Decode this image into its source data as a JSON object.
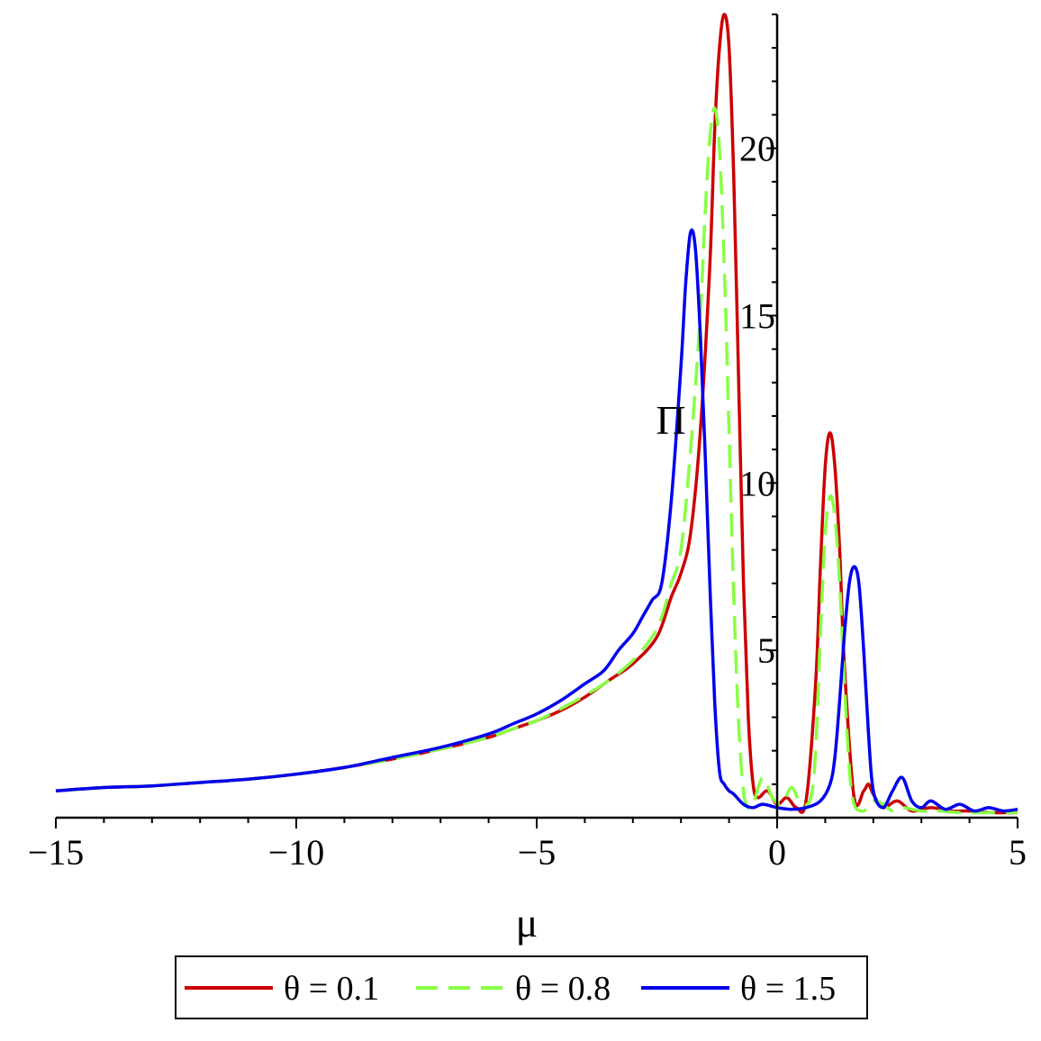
{
  "chart_data": {
    "type": "line",
    "title": "",
    "xlabel": "μ",
    "ylabel": "Π",
    "xlim": [
      -15,
      5
    ],
    "ylim": [
      0,
      24
    ],
    "x_ticks": [
      {
        "value": -15,
        "label": "−15"
      },
      {
        "value": -10,
        "label": "−10"
      },
      {
        "value": -5,
        "label": "−5"
      },
      {
        "value": 0,
        "label": "0"
      },
      {
        "value": 5,
        "label": "5"
      }
    ],
    "y_ticks": [
      {
        "value": 5,
        "label": "5"
      },
      {
        "value": 10,
        "label": "10"
      },
      {
        "value": 15,
        "label": "15"
      },
      {
        "value": 20,
        "label": "20"
      }
    ],
    "grid": false,
    "legend_position": "bottom",
    "series": [
      {
        "name": "θ = 0.1",
        "color": "#cc0000",
        "dash": "solid",
        "x": [
          -15,
          -14,
          -13,
          -12,
          -11,
          -10,
          -9,
          -8,
          -7,
          -6,
          -5.5,
          -5,
          -4.5,
          -4,
          -3.5,
          -3,
          -2.5,
          -2.2,
          -2,
          -1.8,
          -1.6,
          -1.4,
          -1.3,
          -1.2,
          -1.1,
          -1.0,
          -0.9,
          -0.8,
          -0.7,
          -0.6,
          -0.5,
          -0.4,
          -0.2,
          0,
          0.2,
          0.4,
          0.6,
          0.8,
          0.9,
          1.0,
          1.1,
          1.2,
          1.3,
          1.4,
          1.6,
          1.8,
          1.9,
          2.0,
          2.2,
          2.5,
          2.8,
          3.2,
          3.6,
          4.0,
          4.5,
          5
        ],
        "y": [
          0.8,
          0.9,
          0.95,
          1.05,
          1.15,
          1.3,
          1.5,
          1.75,
          2.05,
          2.4,
          2.65,
          2.9,
          3.2,
          3.6,
          4.1,
          4.6,
          5.4,
          6.6,
          7.3,
          8.5,
          11.5,
          16.5,
          20.5,
          23.0,
          24.0,
          23.0,
          19.0,
          13.0,
          7.0,
          3.0,
          1.0,
          0.6,
          0.8,
          0.4,
          0.6,
          0.3,
          0.5,
          4.0,
          7.5,
          10.5,
          11.5,
          10.5,
          8.0,
          4.5,
          0.6,
          0.8,
          1.0,
          0.7,
          0.3,
          0.5,
          0.2,
          0.3,
          0.2,
          0.2,
          0.15,
          0.15
        ]
      },
      {
        "name": "θ = 0.8",
        "color": "#88ff44",
        "dash": "dashed",
        "x": [
          -15,
          -14,
          -13,
          -12,
          -11,
          -10,
          -9,
          -8,
          -7,
          -6,
          -5.5,
          -5,
          -4.5,
          -4,
          -3.5,
          -3,
          -2.6,
          -2.4,
          -2.2,
          -2.0,
          -1.8,
          -1.6,
          -1.5,
          -1.4,
          -1.3,
          -1.2,
          -1.1,
          -1.0,
          -0.9,
          -0.8,
          -0.7,
          -0.6,
          -0.5,
          -0.3,
          -0.1,
          0.1,
          0.3,
          0.5,
          0.7,
          0.8,
          0.9,
          1.0,
          1.1,
          1.2,
          1.3,
          1.4,
          1.5,
          1.6,
          1.8,
          2.0,
          2.2,
          2.4,
          2.6,
          3.0,
          3.4,
          3.8,
          4.2,
          4.6,
          5
        ],
        "y": [
          0.8,
          0.9,
          0.95,
          1.05,
          1.15,
          1.3,
          1.5,
          1.75,
          2.05,
          2.4,
          2.65,
          2.9,
          3.25,
          3.65,
          4.1,
          4.7,
          5.4,
          6.0,
          7.0,
          8.0,
          11.0,
          15.0,
          18.0,
          20.3,
          21.2,
          20.0,
          16.5,
          11.5,
          6.5,
          2.8,
          0.8,
          0.3,
          0.4,
          1.2,
          0.6,
          0.4,
          0.9,
          0.4,
          0.6,
          2.0,
          5.5,
          8.5,
          9.6,
          9.0,
          7.0,
          4.0,
          1.5,
          0.4,
          0.2,
          0.5,
          0.4,
          0.2,
          0.3,
          0.2,
          0.2,
          0.15,
          0.15,
          0.15,
          0.15
        ]
      },
      {
        "name": "θ = 1.5",
        "color": "#0000ee",
        "dash": "solid",
        "x": [
          -15,
          -14,
          -13,
          -12,
          -11,
          -10,
          -9,
          -8,
          -7,
          -6,
          -5.5,
          -5,
          -4.5,
          -4,
          -3.6,
          -3.3,
          -3.0,
          -2.8,
          -2.6,
          -2.4,
          -2.2,
          -2.0,
          -1.9,
          -1.8,
          -1.7,
          -1.6,
          -1.5,
          -1.4,
          -1.3,
          -1.2,
          -1.1,
          -1.0,
          -0.9,
          -0.7,
          -0.5,
          -0.3,
          0,
          0.3,
          0.6,
          0.9,
          1.1,
          1.2,
          1.3,
          1.4,
          1.5,
          1.6,
          1.7,
          1.8,
          1.9,
          2.0,
          2.2,
          2.4,
          2.6,
          2.8,
          3.0,
          3.2,
          3.5,
          3.8,
          4.1,
          4.4,
          4.7,
          5
        ],
        "y": [
          0.8,
          0.9,
          0.95,
          1.05,
          1.15,
          1.3,
          1.5,
          1.8,
          2.1,
          2.5,
          2.8,
          3.1,
          3.5,
          4.0,
          4.4,
          5.0,
          5.5,
          6.0,
          6.5,
          7.0,
          9.5,
          13.5,
          16.0,
          17.5,
          17.0,
          14.5,
          11.0,
          7.0,
          3.5,
          1.4,
          1.0,
          0.8,
          0.7,
          0.4,
          0.3,
          0.4,
          0.3,
          0.25,
          0.3,
          0.5,
          1.0,
          1.8,
          3.5,
          5.5,
          7.0,
          7.5,
          7.0,
          5.0,
          2.5,
          0.8,
          0.3,
          0.8,
          1.2,
          0.5,
          0.3,
          0.5,
          0.25,
          0.4,
          0.2,
          0.3,
          0.2,
          0.25
        ]
      }
    ]
  }
}
